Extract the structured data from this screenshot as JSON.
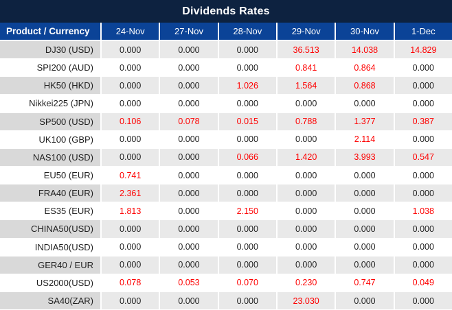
{
  "title": "Dividends Rates",
  "colors": {
    "title_bg": "#0d2240",
    "header_bg": "#0b4397",
    "alt_label_bg": "#d9d9d9",
    "alt_cell_bg": "#e9e9e9",
    "highlight_text": "#fe0000",
    "text": "#1f1f1f"
  },
  "table": {
    "product_header": "Product / Currency",
    "date_headers": [
      "24-Nov",
      "27-Nov",
      "28-Nov",
      "29-Nov",
      "30-Nov",
      "1-Dec"
    ],
    "rows": [
      {
        "product": "DJ30 (USD)",
        "values": [
          "0.000",
          "0.000",
          "0.000",
          "36.513",
          "14.038",
          "14.829"
        ],
        "red": [
          false,
          false,
          false,
          true,
          true,
          true
        ]
      },
      {
        "product": "SPI200 (AUD)",
        "values": [
          "0.000",
          "0.000",
          "0.000",
          "0.841",
          "0.864",
          "0.000"
        ],
        "red": [
          false,
          false,
          false,
          true,
          true,
          false
        ]
      },
      {
        "product": "HK50 (HKD)",
        "values": [
          "0.000",
          "0.000",
          "1.026",
          "1.564",
          "0.868",
          "0.000"
        ],
        "red": [
          false,
          false,
          true,
          true,
          true,
          false
        ]
      },
      {
        "product": "Nikkei225 (JPN)",
        "values": [
          "0.000",
          "0.000",
          "0.000",
          "0.000",
          "0.000",
          "0.000"
        ],
        "red": [
          false,
          false,
          false,
          false,
          false,
          false
        ]
      },
      {
        "product": "SP500 (USD)",
        "values": [
          "0.106",
          "0.078",
          "0.015",
          "0.788",
          "1.377",
          "0.387"
        ],
        "red": [
          true,
          true,
          true,
          true,
          true,
          true
        ]
      },
      {
        "product": "UK100 (GBP)",
        "values": [
          "0.000",
          "0.000",
          "0.000",
          "0.000",
          "2.114",
          "0.000"
        ],
        "red": [
          false,
          false,
          false,
          false,
          true,
          false
        ]
      },
      {
        "product": "NAS100 (USD)",
        "values": [
          "0.000",
          "0.000",
          "0.066",
          "1.420",
          "3.993",
          "0.547"
        ],
        "red": [
          false,
          false,
          true,
          true,
          true,
          true
        ]
      },
      {
        "product": "EU50 (EUR)",
        "values": [
          "0.741",
          "0.000",
          "0.000",
          "0.000",
          "0.000",
          "0.000"
        ],
        "red": [
          true,
          false,
          false,
          false,
          false,
          false
        ]
      },
      {
        "product": "FRA40 (EUR)",
        "values": [
          "2.361",
          "0.000",
          "0.000",
          "0.000",
          "0.000",
          "0.000"
        ],
        "red": [
          true,
          false,
          false,
          false,
          false,
          false
        ]
      },
      {
        "product": "ES35 (EUR)",
        "values": [
          "1.813",
          "0.000",
          "2.150",
          "0.000",
          "0.000",
          "1.038"
        ],
        "red": [
          true,
          false,
          true,
          false,
          false,
          true
        ]
      },
      {
        "product": "CHINA50(USD)",
        "values": [
          "0.000",
          "0.000",
          "0.000",
          "0.000",
          "0.000",
          "0.000"
        ],
        "red": [
          false,
          false,
          false,
          false,
          false,
          false
        ]
      },
      {
        "product": "INDIA50(USD)",
        "values": [
          "0.000",
          "0.000",
          "0.000",
          "0.000",
          "0.000",
          "0.000"
        ],
        "red": [
          false,
          false,
          false,
          false,
          false,
          false
        ]
      },
      {
        "product": "GER40 / EUR",
        "values": [
          "0.000",
          "0.000",
          "0.000",
          "0.000",
          "0.000",
          "0.000"
        ],
        "red": [
          false,
          false,
          false,
          false,
          false,
          false
        ]
      },
      {
        "product": "US2000(USD)",
        "values": [
          "0.078",
          "0.053",
          "0.070",
          "0.230",
          "0.747",
          "0.049"
        ],
        "red": [
          true,
          true,
          true,
          true,
          true,
          true
        ]
      },
      {
        "product": "SA40(ZAR)",
        "values": [
          "0.000",
          "0.000",
          "0.000",
          "23.030",
          "0.000",
          "0.000"
        ],
        "red": [
          false,
          false,
          false,
          true,
          false,
          false
        ]
      }
    ]
  }
}
